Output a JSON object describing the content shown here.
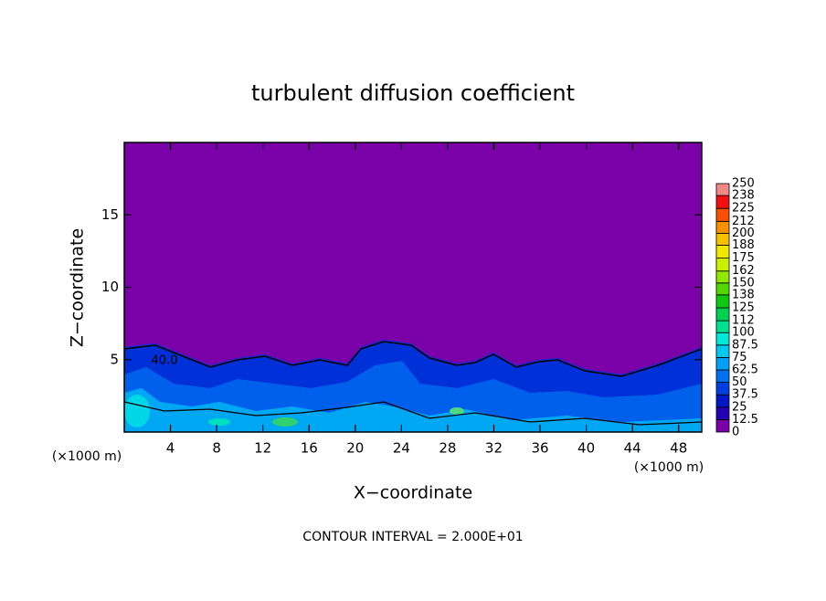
{
  "chart_data": {
    "type": "contour",
    "title": "turbulent diffusion coefficient",
    "xlabel": "X−coordinate",
    "ylabel": "Z−coordinate",
    "x_unit": "(×1000 m)",
    "y_unit": "(×1000 m)",
    "xlim": [
      0,
      50
    ],
    "ylim": [
      0,
      20
    ],
    "xticks": [
      4,
      8,
      12,
      16,
      20,
      24,
      28,
      32,
      36,
      40,
      44,
      48
    ],
    "yticks": [
      5,
      10,
      15
    ],
    "contour_label": "40.0",
    "footer": "CONTOUR INTERVAL = 2.000E+01",
    "colorbar": {
      "levels": [
        0,
        12.5,
        25,
        37.5,
        50,
        62.5,
        75,
        87.5,
        100,
        112,
        125,
        138,
        150,
        162,
        175,
        188,
        200,
        212,
        225,
        238,
        250
      ],
      "colors": [
        "#7a00a8",
        "#2400b4",
        "#0018c8",
        "#0040e0",
        "#0070f0",
        "#00a0f8",
        "#00c8f0",
        "#00e8d8",
        "#00e090",
        "#00d050",
        "#10c810",
        "#50d800",
        "#90e800",
        "#c8f000",
        "#f0e800",
        "#f8c000",
        "#f89000",
        "#f85000",
        "#f01010",
        "#f08888"
      ]
    }
  }
}
